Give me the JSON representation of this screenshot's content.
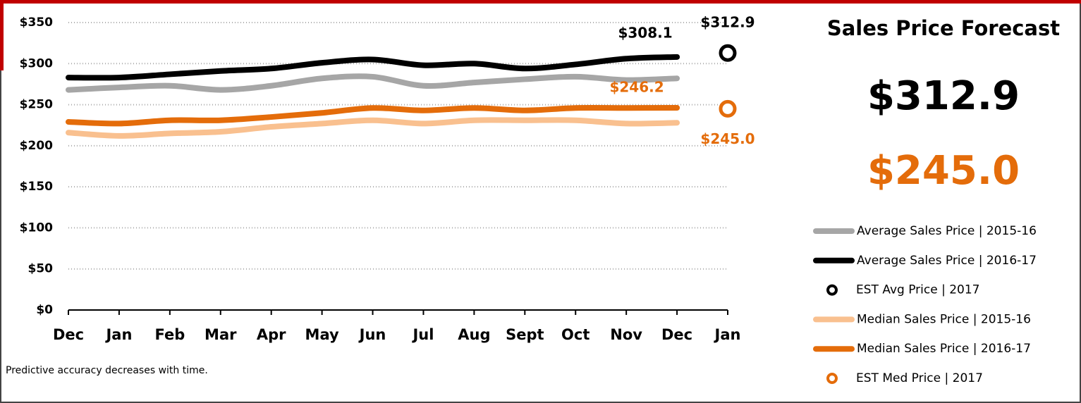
{
  "chart_data": {
    "type": "line",
    "categories": [
      "Dec",
      "Jan",
      "Feb",
      "Mar",
      "Apr",
      "May",
      "Jun",
      "Jul",
      "Aug",
      "Sept",
      "Oct",
      "Nov",
      "Dec",
      "Jan"
    ],
    "ylim": [
      0,
      350
    ],
    "yticks": [
      {
        "value": 0,
        "label": "$0"
      },
      {
        "value": 50,
        "label": "$50"
      },
      {
        "value": 100,
        "label": "$100"
      },
      {
        "value": 150,
        "label": "$150"
      },
      {
        "value": 200,
        "label": "$200"
      },
      {
        "value": 250,
        "label": "$250"
      },
      {
        "value": 300,
        "label": "$300"
      },
      {
        "value": 350,
        "label": "$350"
      }
    ],
    "grid": true,
    "series": [
      {
        "name": "Average Sales Price | 2015-16",
        "color": "#a6a6a6",
        "style": "line",
        "values": [
          268,
          271,
          273,
          268,
          273,
          282,
          284,
          273,
          277,
          281,
          284,
          280,
          282,
          null
        ]
      },
      {
        "name": "Average Sales Price | 2016-17",
        "color": "#000000",
        "style": "line",
        "values": [
          283,
          283,
          287,
          291,
          294,
          301,
          305,
          298,
          300,
          294,
          299,
          306,
          308.1,
          null
        ],
        "value_labels": [
          null,
          null,
          null,
          null,
          null,
          null,
          null,
          null,
          null,
          null,
          null,
          null,
          "$308.1",
          null
        ]
      },
      {
        "name": "EST Avg Price | 2017",
        "color": "#000000",
        "style": "marker",
        "values": [
          null,
          null,
          null,
          null,
          null,
          null,
          null,
          null,
          null,
          null,
          null,
          null,
          null,
          312.9
        ],
        "value_labels": [
          null,
          null,
          null,
          null,
          null,
          null,
          null,
          null,
          null,
          null,
          null,
          null,
          null,
          "$312.9"
        ]
      },
      {
        "name": "Median Sales Price | 2015-16",
        "color": "#f9c08f",
        "style": "line",
        "values": [
          216,
          212,
          215,
          217,
          223,
          227,
          231,
          227,
          231,
          231,
          231,
          227,
          228,
          null
        ]
      },
      {
        "name": "Median Sales Price | 2016-17",
        "color": "#e46c0a",
        "style": "line",
        "values": [
          229,
          227,
          231,
          231,
          235,
          240,
          246,
          243,
          246,
          243,
          246,
          246,
          246.2,
          null
        ],
        "value_labels": [
          null,
          null,
          null,
          null,
          null,
          null,
          null,
          null,
          null,
          null,
          null,
          null,
          "$246.2",
          null
        ]
      },
      {
        "name": "EST Med Price | 2017",
        "color": "#e46c0a",
        "style": "marker",
        "values": [
          null,
          null,
          null,
          null,
          null,
          null,
          null,
          null,
          null,
          null,
          null,
          null,
          null,
          245.0
        ],
        "value_labels": [
          null,
          null,
          null,
          null,
          null,
          null,
          null,
          null,
          null,
          null,
          null,
          null,
          null,
          "$245.0"
        ]
      }
    ],
    "note": "Predictive accuracy decreases with time.",
    "panel": {
      "title": "Sales Price Forecast",
      "highlights": [
        "$312.9",
        "$245.0"
      ]
    }
  }
}
